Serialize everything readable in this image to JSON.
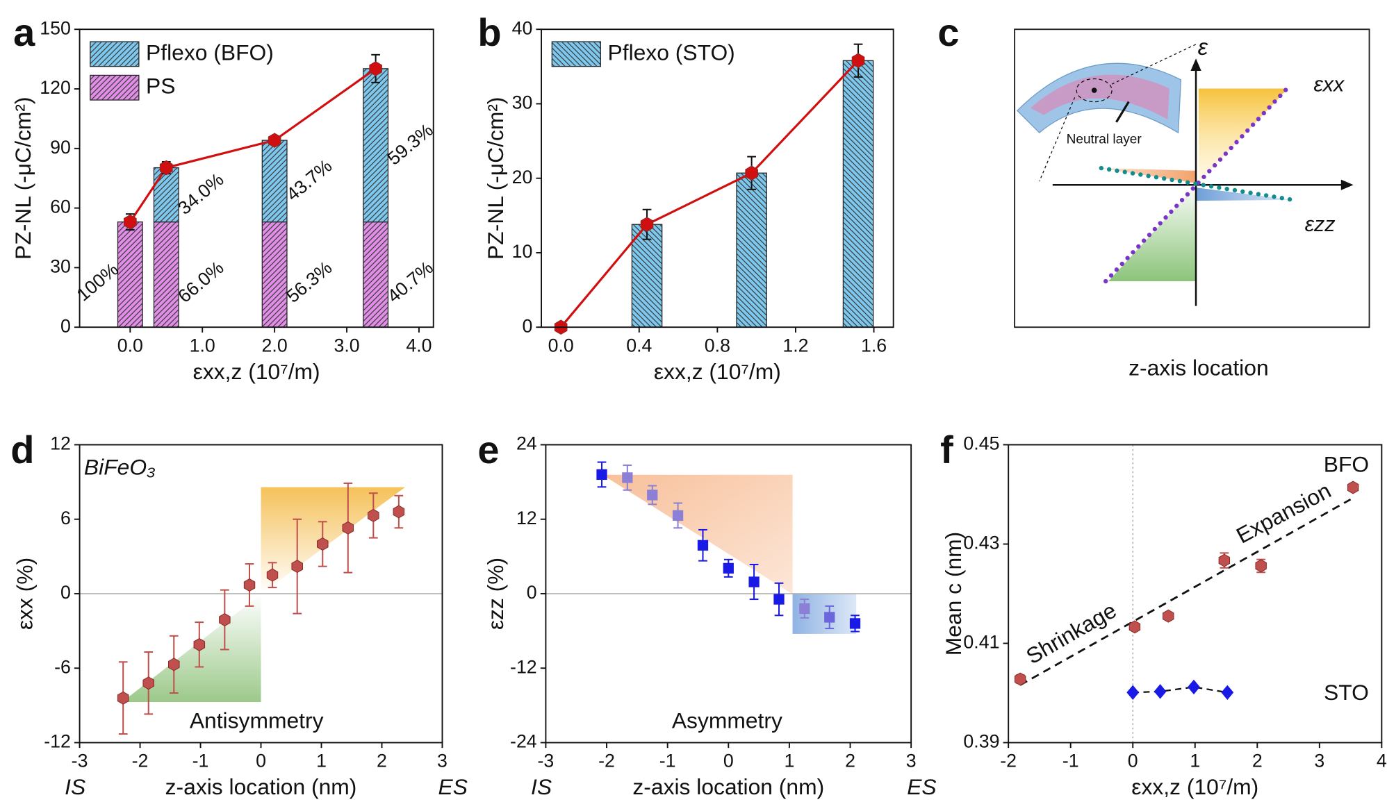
{
  "chart_data": [
    {
      "type": "bar",
      "label": "a",
      "stacked": true,
      "x": [
        0,
        0.5,
        2.0,
        3.4
      ],
      "xlim": [
        -0.7,
        4.2
      ],
      "xticks": [
        {
          "value": 0,
          "label": "0.0"
        },
        {
          "value": 1,
          "label": "1.0"
        },
        {
          "value": 2,
          "label": "2.0"
        },
        {
          "value": 3,
          "label": "3.0"
        },
        {
          "value": 4,
          "label": "4.0"
        }
      ],
      "ylim": [
        0,
        150
      ],
      "yticks": [
        0,
        30,
        60,
        90,
        120,
        150
      ],
      "xlabel": "εxx,z (10⁷/m)",
      "ylabel": "PZ-NL (-μC/cm²)",
      "series": [
        {
          "name": "PS",
          "color": "#e08ee6",
          "hatch": "forward",
          "values": [
            53,
            53,
            53,
            53
          ],
          "percent_labels": [
            "100%",
            "66.0%",
            "56.3%",
            "40.7%"
          ]
        },
        {
          "name": "Pflexo (BFO)",
          "color": "#7ec8ee",
          "hatch": "forward",
          "values": [
            null,
            27.3,
            41.1,
            77.2
          ],
          "percent_labels": [
            null,
            "34.0%",
            "43.7%",
            "59.3%"
          ]
        }
      ],
      "line": {
        "color": "#d01010",
        "values": [
          53,
          80.3,
          94.1,
          130.2
        ],
        "errors": [
          4,
          3,
          2,
          7
        ]
      }
    },
    {
      "type": "bar",
      "label": "b",
      "x": [
        0.44,
        0.975,
        1.52
      ],
      "xlim": [
        -0.1,
        1.7
      ],
      "xticks": [
        {
          "value": 0,
          "label": "0.0"
        },
        0.4,
        0.8,
        1.2,
        1.6
      ],
      "ylim": [
        0,
        40
      ],
      "yticks": [
        0,
        10,
        20,
        30,
        40
      ],
      "xlabel": "εxx,z (10⁷/m)",
      "ylabel": "PZ-NL (-μC/cm²)",
      "series": [
        {
          "name": "Pflexo (STO)",
          "color": "#7ec8ee",
          "hatch": "back",
          "values": [
            13.8,
            20.7,
            35.8
          ]
        }
      ],
      "line": {
        "color": "#d01010",
        "x": [
          0,
          0.44,
          0.975,
          1.52
        ],
        "values": [
          0,
          13.8,
          20.7,
          35.8
        ],
        "errors": [
          null,
          2,
          2.2,
          2.2
        ]
      }
    },
    {
      "type": "diagram",
      "label": "c",
      "labels": {
        "strain": "ε",
        "xx": "εxx",
        "zz": "εzz",
        "neutral": "Neutral layer",
        "xlabel": "z-axis location"
      }
    },
    {
      "type": "scatter",
      "label": "d",
      "xlim": [
        -3,
        3
      ],
      "xticks": [
        -3,
        -2,
        -1,
        0,
        1,
        2,
        3
      ],
      "ylim": [
        -12,
        12
      ],
      "yticks": [
        -12,
        -6,
        0,
        6,
        12
      ],
      "zero_line": true,
      "xlabel": "z-axis location (nm)",
      "ylabel": "εxx (%)",
      "xlabel_left": "IS",
      "xlabel_right": "ES",
      "annotations": [
        "BiFeO₃",
        "Antisymmetry"
      ],
      "series": [
        {
          "marker": "hexagon",
          "color": "#c0504d",
          "x": [
            -2.28,
            -1.86,
            -1.44,
            -1.02,
            -0.6,
            -0.19,
            0.19,
            0.6,
            1.02,
            1.44,
            1.86,
            2.28
          ],
          "values": [
            -8.4,
            -7.2,
            -5.7,
            -4.1,
            -2.1,
            0.7,
            1.5,
            2.2,
            4.0,
            5.3,
            6.3,
            6.6
          ],
          "errors": [
            2.9,
            2.5,
            2.3,
            1.8,
            2.4,
            1.7,
            1.0,
            3.8,
            1.8,
            3.6,
            1.8,
            1.3
          ]
        }
      ]
    },
    {
      "type": "scatter",
      "label": "e",
      "xlim": [
        -3,
        3
      ],
      "xticks": [
        -3,
        -2,
        -1,
        0,
        1,
        2,
        3
      ],
      "ylim": [
        -24,
        24
      ],
      "yticks": [
        -24,
        -12,
        0,
        12,
        24
      ],
      "zero_line": true,
      "xlabel": "z-axis location (nm)",
      "ylabel": "εzz (%)",
      "xlabel_left": "IS",
      "xlabel_right": "ES",
      "annotations": [
        "Asymmetry"
      ],
      "series": [
        {
          "marker": "square",
          "color": "#1a1ae6",
          "colors": [
            "#1a1ae6",
            "#8c7fd6",
            "#8c7fd6",
            "#8c7fd6",
            "#1a1ae6",
            "#1a1ae6",
            "#1a1ae6",
            "#1a1ae6",
            "#8c7fd6",
            "#6b66dd",
            "#1a1ae6"
          ],
          "x": [
            -2.08,
            -1.66,
            -1.25,
            -0.83,
            -0.42,
            0,
            0.42,
            0.83,
            1.25,
            1.66,
            2.08
          ],
          "values": [
            19.2,
            18.7,
            15.9,
            12.6,
            7.8,
            4.1,
            1.9,
            -0.9,
            -2.4,
            -3.8,
            -4.8
          ],
          "errors": [
            2,
            2,
            1.5,
            2,
            2.5,
            1.4,
            2.8,
            2.6,
            1.5,
            1.8,
            1.3
          ]
        }
      ]
    },
    {
      "type": "scatter",
      "label": "f",
      "xlim": [
        -2,
        4
      ],
      "xticks": [
        -2,
        -1,
        0,
        1,
        2,
        3,
        4
      ],
      "ylim": [
        0.39,
        0.45
      ],
      "yticks": [
        0.39,
        0.41,
        0.43,
        0.45
      ],
      "vline": 0,
      "xlabel": "εxx,z (10⁷/m)",
      "ylabel": "Mean c (nm)",
      "annotations": [
        "Shrinkage",
        "Expansion"
      ],
      "series": [
        {
          "name": "BFO",
          "marker": "hexagon",
          "color": "#c0504d",
          "x": [
            -1.81,
            0.03,
            0.57,
            1.47,
            2.06,
            3.54
          ],
          "values": [
            0.4028,
            0.4133,
            0.4155,
            0.4267,
            0.4256,
            0.4414
          ],
          "errors": [
            0.0008,
            null,
            null,
            0.0015,
            0.0013,
            null
          ],
          "fit": {
            "x": [
              -1.81,
              3.5
            ],
            "values": [
              0.4016,
              0.439
            ]
          }
        },
        {
          "name": "STO",
          "marker": "diamond",
          "color": "#1a1ae6",
          "connect": "dashed",
          "x": [
            0,
            0.44,
            0.98,
            1.52
          ],
          "values": [
            0.4001,
            0.4003,
            0.4012,
            0.4001
          ]
        }
      ]
    }
  ]
}
